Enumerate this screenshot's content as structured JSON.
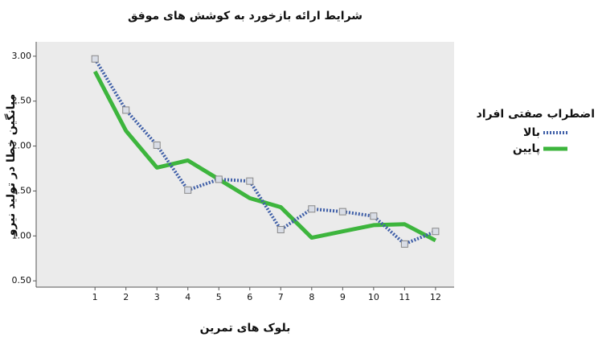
{
  "chart_data": {
    "type": "line",
    "title": "شرایط ارائه بازخورد به کوشش های موفق",
    "x_label": "بلوک های تمرین",
    "y_label": "میانگین خطا در تولید نیرو",
    "legend_title": "اضطراب صفتی افراد",
    "x": [
      1,
      2,
      3,
      4,
      5,
      6,
      7,
      8,
      9,
      10,
      11,
      12
    ],
    "series": [
      {
        "name": "بالا",
        "color": "#3f5fa8",
        "dashed": true,
        "markers": true,
        "values": [
          2.97,
          2.4,
          2.01,
          1.51,
          1.63,
          1.61,
          1.07,
          1.3,
          1.27,
          1.22,
          0.91,
          1.05
        ]
      },
      {
        "name": "پایین",
        "color": "#3db53d",
        "dashed": false,
        "markers": false,
        "values": [
          2.83,
          2.17,
          1.76,
          1.84,
          1.63,
          1.42,
          1.32,
          0.98,
          1.05,
          1.12,
          1.13,
          0.95
        ]
      }
    ],
    "xlim": [
      -0.9,
      12.6
    ],
    "xticks": [
      1,
      2,
      3,
      4,
      5,
      6,
      7,
      8,
      9,
      10,
      11,
      12
    ],
    "ylim": [
      0.43,
      3.16
    ],
    "yticks": [
      {
        "value": 0.5,
        "label": "0.50"
      },
      {
        "value": 1,
        "label": "1.00"
      },
      {
        "value": 1.5,
        "label": "1.50"
      },
      {
        "value": 2,
        "label": "2.00"
      },
      {
        "value": 2.5,
        "label": "2.50"
      },
      {
        "value": 3,
        "label": "3.00"
      }
    ]
  }
}
